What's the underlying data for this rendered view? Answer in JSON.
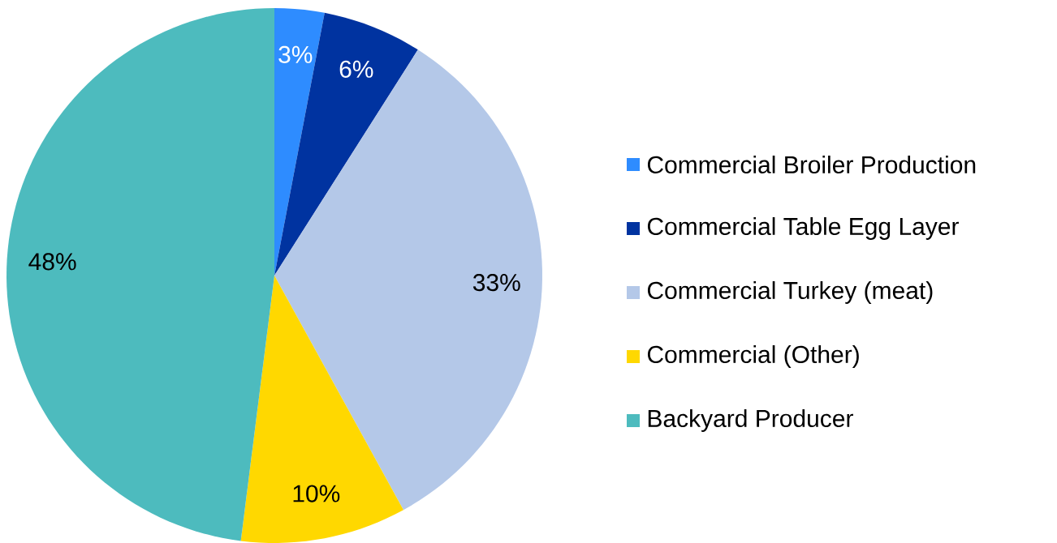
{
  "chart_data": {
    "type": "pie",
    "categories": [
      "Commercial Broiler Production",
      "Commercial Table Egg Layer",
      "Commercial Turkey (meat)",
      "Commercial (Other)",
      "Backyard Producer"
    ],
    "values": [
      3,
      6,
      33,
      10,
      48
    ],
    "colors": [
      "#2e8cff",
      "#0033a0",
      "#b4c8e8",
      "#ffd800",
      "#4dbbbe"
    ],
    "value_labels": [
      "3%",
      "6%",
      "33%",
      "10%",
      "48%"
    ],
    "legend": "right"
  }
}
